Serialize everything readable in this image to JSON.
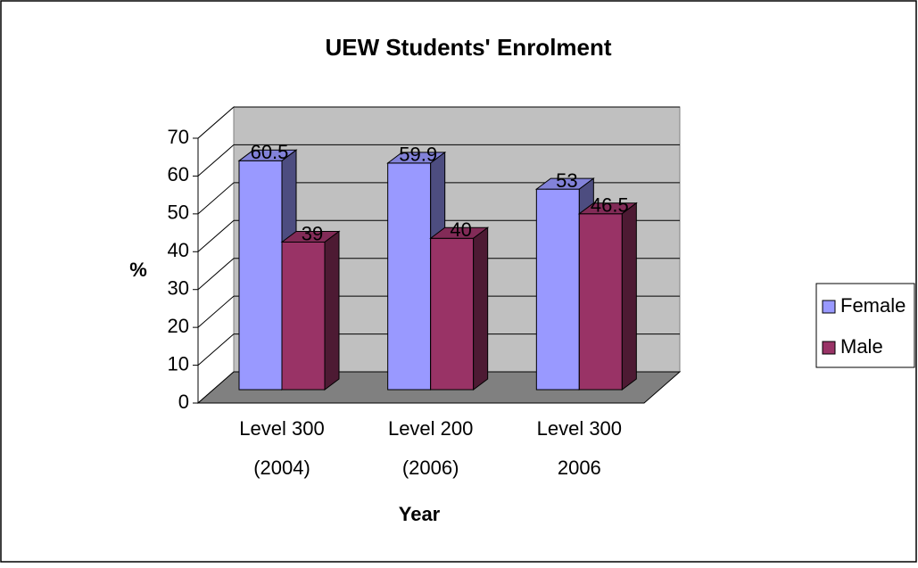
{
  "chart_data": {
    "type": "bar3d",
    "title": "UEW Students' Enrolment",
    "categories": [
      [
        "Level 300",
        "(2004)"
      ],
      [
        "Level 200",
        "(2006)"
      ],
      [
        "Level 300",
        "2006"
      ]
    ],
    "series": [
      {
        "name": "Female",
        "color": "#9999ff",
        "values": [
          60.5,
          59.9,
          53
        ]
      },
      {
        "name": "Male",
        "color": "#993366",
        "values": [
          39,
          40,
          46.5
        ]
      }
    ],
    "ylim": [
      0,
      70
    ],
    "yticks": [
      0,
      10,
      20,
      30,
      40,
      50,
      60,
      70
    ],
    "y_label": "%",
    "x_label": "Year",
    "grid": true,
    "legend": "right"
  }
}
